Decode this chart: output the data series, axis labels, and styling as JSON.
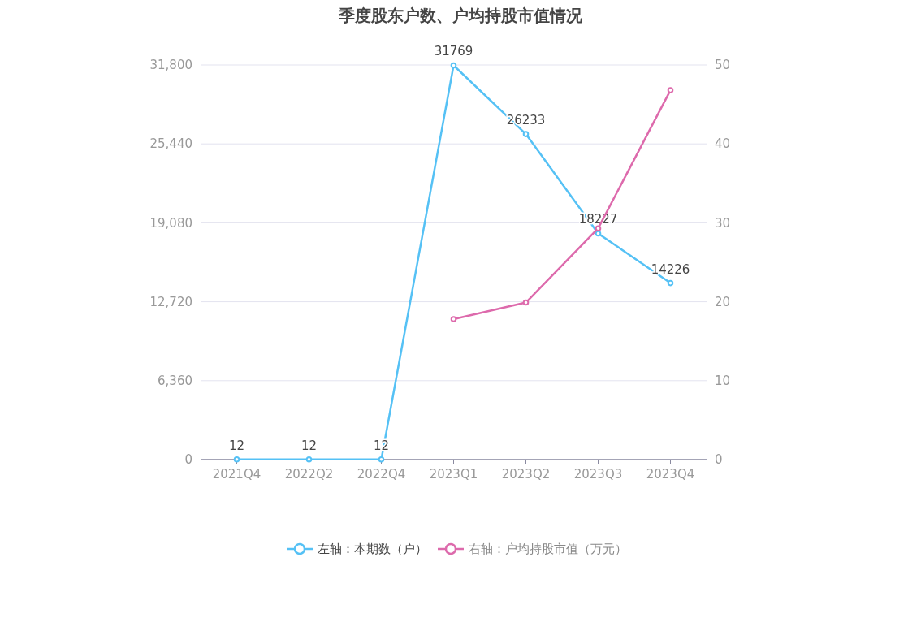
{
  "chart_data": {
    "type": "line",
    "title": "季度股东户数、户均持股市值情况",
    "categories": [
      "2021Q4",
      "2022Q2",
      "2022Q4",
      "2023Q1",
      "2023Q2",
      "2023Q3",
      "2023Q4"
    ],
    "series": [
      {
        "name": "左轴：本期数（户）",
        "color": "#55c1f5",
        "values": [
          12,
          12,
          12,
          31769,
          26233,
          18227,
          14226
        ],
        "value_labels": [
          "12",
          "12",
          "12",
          "31769",
          "26233",
          "18227",
          "14226"
        ]
      },
      {
        "name": "右轴：户均持股市值（万元）",
        "color": "#dd6aac",
        "axis": "y2",
        "values": [
          null,
          null,
          null,
          17.8,
          19.9,
          29.3,
          46.8
        ]
      }
    ],
    "ylim": [
      0,
      31800
    ],
    "yticks": [
      0,
      {
        "value": 6360,
        "label": "6,360"
      },
      {
        "value": 12720,
        "label": "12,720"
      },
      {
        "value": 19080,
        "label": "19,080"
      },
      {
        "value": 25440,
        "label": "25,440"
      },
      {
        "value": 31800,
        "label": "31,800"
      }
    ],
    "y2lim": [
      0,
      50
    ],
    "y2ticks": [
      0,
      10,
      20,
      30,
      40,
      50
    ],
    "grid": "y",
    "legend": "bottom",
    "marker": "circle",
    "line_style": "solid"
  }
}
